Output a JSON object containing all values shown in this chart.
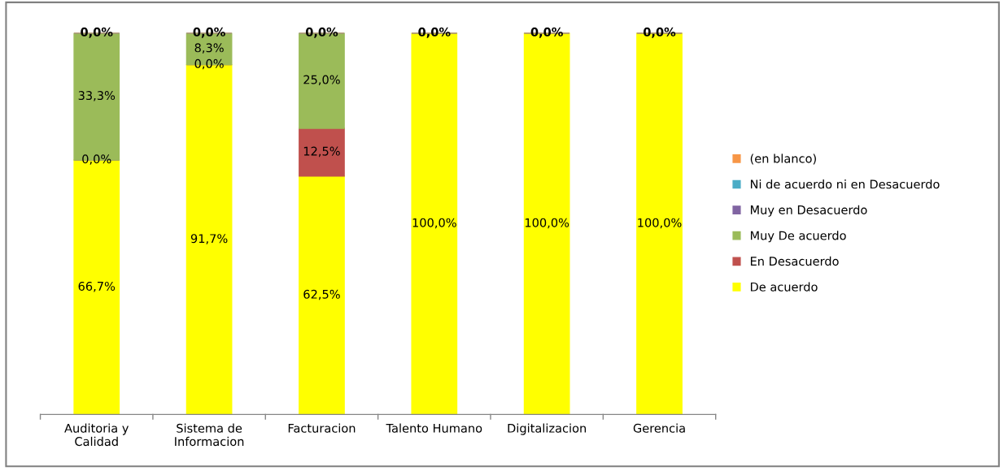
{
  "chart_data": {
    "type": "bar",
    "stacked": true,
    "categories": [
      "Auditoria y\nCalidad",
      "Sistema de\nInformacion",
      "Facturacion",
      "Talento Humano",
      "Digitalizacion",
      "Gerencia"
    ],
    "series": [
      {
        "name": "De acuerdo",
        "color": "#ffff00",
        "values": [
          66.7,
          91.7,
          62.5,
          100.0,
          100.0,
          100.0
        ],
        "value_labels": [
          "66,7%",
          "91,7%",
          "62,5%",
          "100,0%",
          "100,0%",
          "100,0%"
        ]
      },
      {
        "name": "En Desacuerdo",
        "color": "#c0504d",
        "values": [
          0.0,
          0.0,
          12.5,
          0.0,
          0.0,
          0.0
        ],
        "value_labels": [
          "0,0%",
          "0,0%",
          "12,5%",
          null,
          null,
          null
        ]
      },
      {
        "name": "Muy De acuerdo",
        "color": "#9bbb59",
        "values": [
          33.3,
          8.3,
          25.0,
          0.0,
          0.0,
          0.0
        ],
        "value_labels": [
          "33,3%",
          "8,3%",
          "25,0%",
          null,
          null,
          null
        ]
      },
      {
        "name": "Muy en Desacuerdo",
        "color": "#8064a2",
        "values": [
          0.0,
          0.0,
          0.0,
          0.0,
          0.0,
          0.0
        ],
        "value_labels": [
          null,
          null,
          null,
          null,
          null,
          null
        ]
      },
      {
        "name": "Ni de acuerdo ni en Desacuerdo",
        "color": "#4bacc6",
        "values": [
          0.0,
          0.0,
          0.0,
          0.0,
          0.0,
          0.0
        ],
        "value_labels": [
          null,
          null,
          null,
          null,
          null,
          null
        ]
      },
      {
        "name": "(en blanco)",
        "color": "#f79646",
        "values": [
          0.0,
          0.0,
          0.0,
          0.0,
          0.0,
          0.0
        ],
        "value_labels": [
          "0,0%",
          "0,0%",
          "0,0%",
          "0,0%",
          "0,0%",
          "0,0%"
        ]
      }
    ],
    "legend": "right",
    "grid": false
  }
}
